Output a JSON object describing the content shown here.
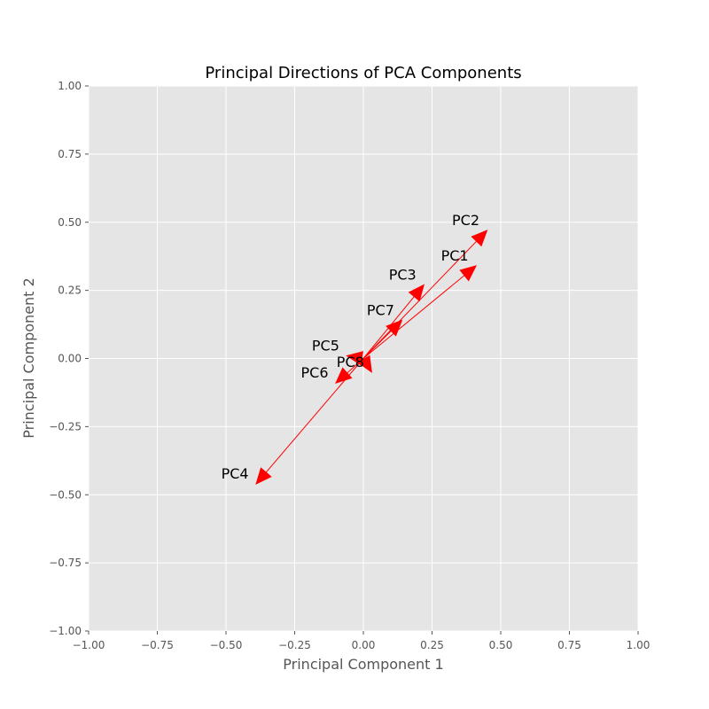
{
  "chart_data": {
    "type": "scatter",
    "title": "Principal Directions of PCA Components",
    "xlabel": "Principal Component 1",
    "ylabel": "Principal Component 2",
    "xlim": [
      -1.0,
      1.0
    ],
    "ylim": [
      -1.0,
      1.0
    ],
    "grid": true,
    "xticks": [
      "−1.00",
      "−0.75",
      "−0.50",
      "−0.25",
      "0.00",
      "0.25",
      "0.50",
      "0.75",
      "1.00"
    ],
    "yticks": [
      "−1.00",
      "−0.75",
      "−0.50",
      "−0.25",
      "0.00",
      "0.25",
      "0.50",
      "0.75",
      "1.00"
    ],
    "xtick_values": [
      -1.0,
      -0.75,
      -0.5,
      -0.25,
      0.0,
      0.25,
      0.5,
      0.75,
      1.0
    ],
    "ytick_values": [
      -1.0,
      -0.75,
      -0.5,
      -0.25,
      0.0,
      0.25,
      0.5,
      0.75,
      1.0
    ],
    "arrow_color": "#ff0000",
    "background_color": "#e5e5e5",
    "vectors": [
      {
        "label": "PC1",
        "x": 0.41,
        "y": 0.34
      },
      {
        "label": "PC2",
        "x": 0.45,
        "y": 0.47
      },
      {
        "label": "PC3",
        "x": 0.22,
        "y": 0.27
      },
      {
        "label": "PC4",
        "x": -0.39,
        "y": -0.46
      },
      {
        "label": "PC5",
        "x": -0.06,
        "y": 0.01
      },
      {
        "label": "PC6",
        "x": -0.1,
        "y": -0.09
      },
      {
        "label": "PC7",
        "x": 0.14,
        "y": 0.14
      },
      {
        "label": "PC8",
        "x": 0.03,
        "y": -0.05
      }
    ]
  }
}
